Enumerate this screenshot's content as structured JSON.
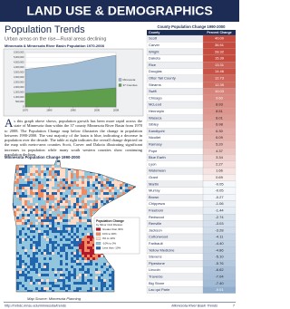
{
  "header": {
    "title": "LAND USE & DEMOGRAPHICS",
    "section_title": "Population Trends",
    "subtitle": "Urban areas on the rise—Rural areas declining"
  },
  "chart_data": {
    "type": "area",
    "title": "Minnesota & Minnesota River Basin Population 1970-2008",
    "x": [
      1970,
      1980,
      1990,
      2000,
      2008
    ],
    "series": [
      {
        "name": "Minnesota",
        "color": "#9fbcd4",
        "values": [
          3806103,
          4075970,
          4375099,
          4919479,
          5220393
        ]
      },
      {
        "name": "37 Counties",
        "color": "#5f9e4c",
        "values": [
          1380000,
          1470000,
          1590000,
          1790000,
          1930000
        ]
      }
    ],
    "xlim": [
      1970,
      2008
    ],
    "xticks": [
      1970,
      1980,
      1990,
      2000,
      2008
    ],
    "ylim": [
      0,
      5500000
    ],
    "yticks": [
      {
        "value": 0,
        "label": "0"
      },
      {
        "value": 500000,
        "label": "500,000"
      },
      {
        "value": 1000000,
        "label": "1,000,000"
      },
      {
        "value": 1500000,
        "label": "1,500,000"
      },
      {
        "value": 2000000,
        "label": "2,000,000"
      },
      {
        "value": 2500000,
        "label": "2,500,000"
      },
      {
        "value": 3000000,
        "label": "3,000,000"
      },
      {
        "value": 3500000,
        "label": "3,500,000"
      },
      {
        "value": 4000000,
        "label": "4,000,000"
      },
      {
        "value": 4500000,
        "label": "4,500,000"
      },
      {
        "value": 5000000,
        "label": "5,000,000"
      },
      {
        "value": 5500000,
        "label": "5,500,000"
      }
    ],
    "grid": true,
    "legend": "right"
  },
  "body": {
    "paragraph": "As this graph above shows, population growth has been more rapid across the state of Minnesota than within the 37 county Minnesota River Basin from 1970 to 2008. The Population Change map below illustrates the change in population between 1990-2000. The vast majority of the basin is blue, indicating a decrease in population over the decade. The table at right indicates the overall change depicted on the map with metro-area counties Scott, Carver and Dakota illustrating significant increases in population while many south western counties show continuing population declines."
  },
  "map": {
    "title": "Minnesota Population Change 1990-2000",
    "legend_title": "Population Change",
    "legend_subtitle": "by Minor Civil Division",
    "legend": [
      {
        "label": "Greater than 30%",
        "color": "#b2182b"
      },
      {
        "label": "10% to 30%",
        "color": "#ef8a62"
      },
      {
        "label": "0% to 10%",
        "color": "#fddbc7"
      },
      {
        "label": "-10% to 0%",
        "color": "#92c5de"
      },
      {
        "label": "Less than -10%",
        "color": "#2166ac"
      }
    ],
    "source": "Map Source: Minnesota Planning"
  },
  "table": {
    "title": "County Population Change 1990-2000",
    "columns": [
      "County",
      "Percent Change"
    ],
    "positive_color": "#c0392b",
    "negative_color": "#3a6fa8",
    "rows": [
      [
        "Scott",
        "40.00"
      ],
      [
        "Carver",
        "36.51"
      ],
      [
        "Wright",
        "28.32"
      ],
      [
        "Dakota",
        "15.39"
      ],
      [
        "Rice",
        "13.31"
      ],
      [
        "Douglas",
        "14.46"
      ],
      [
        "Otter Tail County",
        "12.73"
      ],
      [
        "Stearns",
        "12.35"
      ],
      [
        "Swift",
        "10.03"
      ],
      [
        "Chisago",
        "9.60"
      ],
      [
        "McLeod",
        "8.93"
      ],
      [
        "Hennepin",
        "8.51"
      ],
      [
        "Waseca",
        "8.01"
      ],
      [
        "Sibley",
        "6.98"
      ],
      [
        "Kandiyohi",
        "6.30"
      ],
      [
        "Nicollet",
        "6.09"
      ],
      [
        "Ramsey",
        "5.20"
      ],
      [
        "Pope",
        "4.37"
      ],
      [
        "Blue Earth",
        "3.34"
      ],
      [
        "Lyon",
        "2.27"
      ],
      [
        "Watonwan",
        "1.66"
      ],
      [
        "Grant",
        "0.69"
      ],
      [
        "Martin",
        "-0.05"
      ],
      [
        "Murray",
        "-0.05"
      ],
      [
        "Brown",
        "-0.27"
      ],
      [
        "Chippewa",
        "-1.06"
      ],
      [
        "Freeborn",
        "-1.44"
      ],
      [
        "Redwood",
        "-2.74"
      ],
      [
        "Renville",
        "-3.03"
      ],
      [
        "Jackson",
        "-3.28"
      ],
      [
        "Cottonwood",
        "-4.11"
      ],
      [
        "Faribault",
        "-4.40"
      ],
      [
        "Yellow Medicine",
        "-4.86"
      ],
      [
        "Stevens",
        "-5.10"
      ],
      [
        "Pipestone",
        "-5.76"
      ],
      [
        "Lincoln",
        "-6.62"
      ],
      [
        "Traverse",
        "-7.04"
      ],
      [
        "Big Stone",
        "-7.40"
      ],
      [
        "Lac qui Parle",
        "-9.01"
      ]
    ]
  },
  "footer": {
    "url": "http://mrbdc.mnsu.edu/minnesota/trends",
    "publication": "Minnesota River Basin Trends",
    "page": "7"
  }
}
